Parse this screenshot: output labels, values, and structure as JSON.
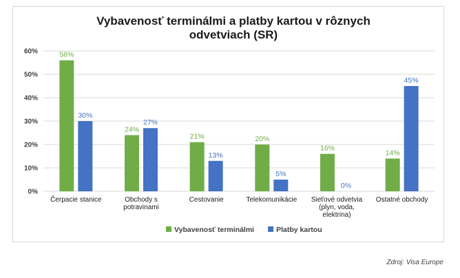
{
  "chart_data": {
    "type": "bar",
    "title": "Vybavenosť terminálmi a platby kartou v rôznych odvetviach (SR)",
    "title_lines": [
      "Vybavenosť terminálmi a platby kartou v rôznych",
      "odvetviach (SR)"
    ],
    "categories": [
      [
        "Čerpacie stanice"
      ],
      [
        "Obchody s",
        "potravinami"
      ],
      [
        "Cestovanie"
      ],
      [
        "Telekomunikácie"
      ],
      [
        "Sieťové odvetvia",
        "(plyn, voda,",
        "elektrina)"
      ],
      [
        "Ostatné obchody"
      ]
    ],
    "series": [
      {
        "name": "Vybavenosť terminálmi",
        "color": "#70ad47",
        "values": [
          56,
          24,
          21,
          20,
          16,
          14
        ],
        "labels": [
          "56%",
          "24%",
          "21%",
          "20%",
          "16%",
          "14%"
        ]
      },
      {
        "name": "Platby kartou",
        "color": "#4472c4",
        "values": [
          30,
          27,
          13,
          5,
          0,
          45
        ],
        "labels": [
          "30%",
          "27%",
          "13%",
          "5%",
          "0%",
          "45%"
        ]
      }
    ],
    "yticks": [
      "0%",
      "10%",
      "20%",
      "30%",
      "40%",
      "50%",
      "60%"
    ],
    "ylim": [
      0,
      60
    ],
    "unit": "%",
    "grid": true,
    "legend_position": "bottom",
    "gridline_color": "#d9d9d9"
  },
  "source_note": "Zdroj: Visa Europe"
}
